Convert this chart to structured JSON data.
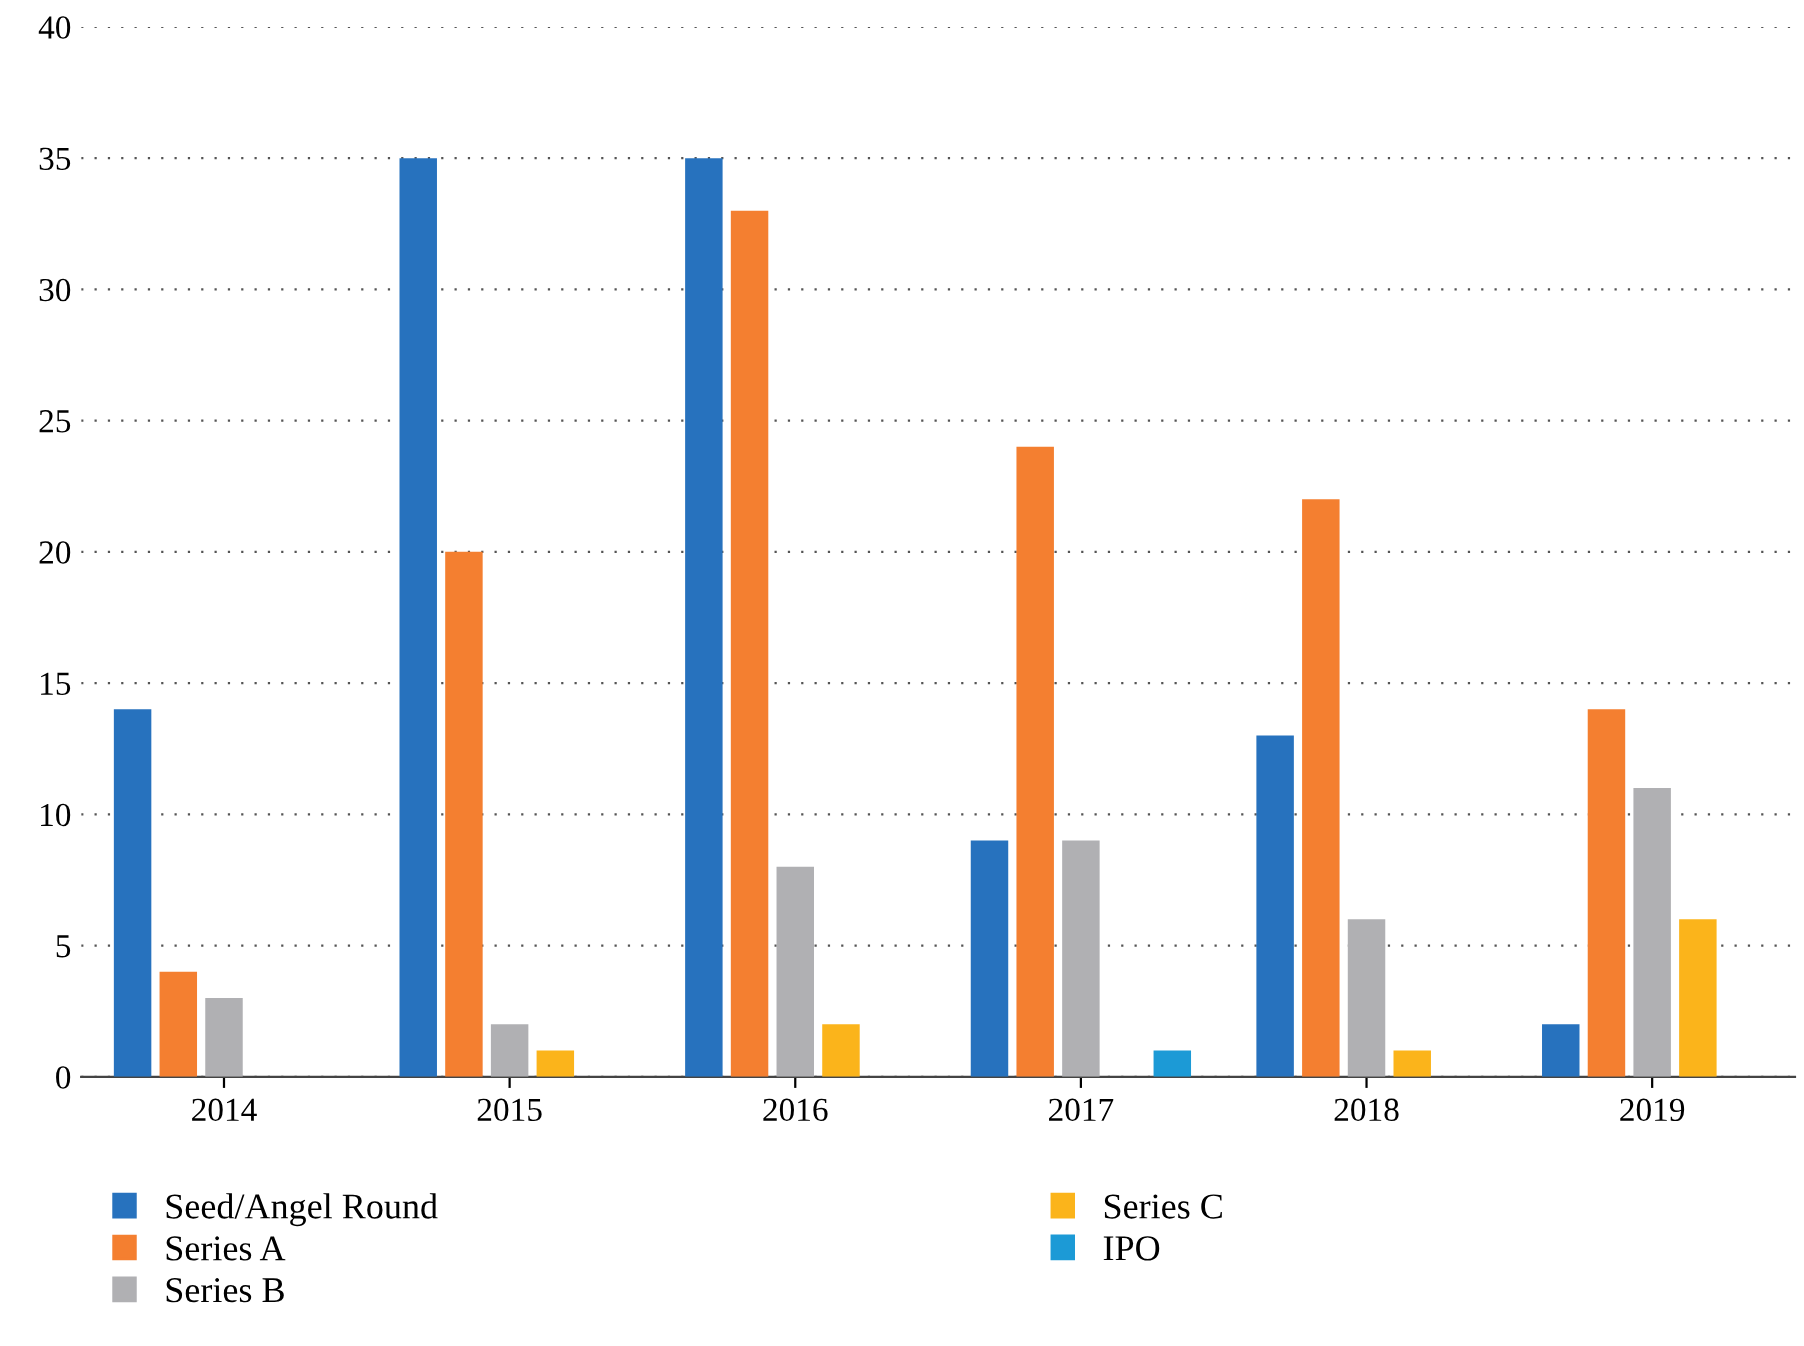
{
  "chart_data": {
    "type": "bar",
    "categories": [
      "2014",
      "2015",
      "2016",
      "2017",
      "2018",
      "2019"
    ],
    "series": [
      {
        "name": "Seed/Angel Round",
        "color": "#2772be",
        "values": [
          14,
          35,
          35,
          9,
          13,
          2
        ]
      },
      {
        "name": "Series A",
        "color": "#f47f30",
        "values": [
          4,
          20,
          33,
          24,
          22,
          14
        ]
      },
      {
        "name": "Series B",
        "color": "#b0b0b3",
        "values": [
          3,
          2,
          8,
          9,
          6,
          11
        ]
      },
      {
        "name": "Series C",
        "color": "#fbb41b",
        "values": [
          null,
          1,
          2,
          null,
          1,
          6
        ]
      },
      {
        "name": "IPO",
        "color": "#1c9ad6",
        "values": [
          null,
          null,
          null,
          1,
          null,
          null
        ]
      }
    ],
    "ylim": [
      0,
      40
    ],
    "yticks": [
      0,
      5,
      10,
      15,
      20,
      25,
      30,
      35,
      40
    ],
    "grid": "y",
    "legend": "bottom"
  }
}
